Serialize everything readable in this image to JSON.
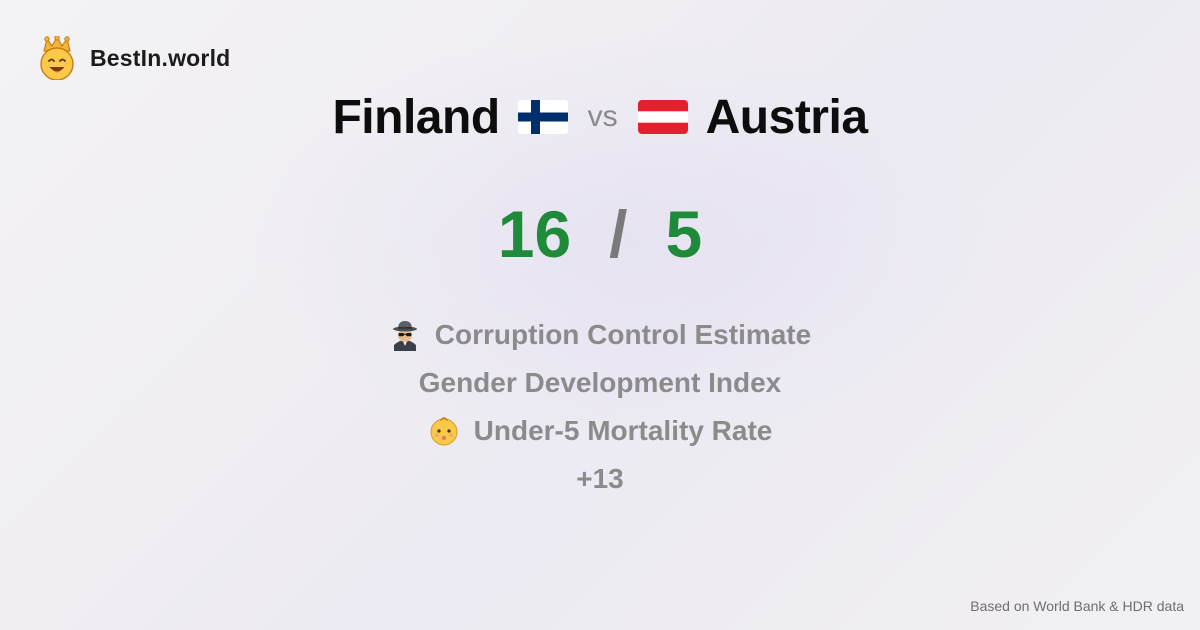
{
  "brand": {
    "name": "BestIn.world",
    "icon": "crowned-smiley-icon"
  },
  "comparison": {
    "left": {
      "name": "Finland",
      "flag": "finland-flag-icon"
    },
    "vs": "vs",
    "right": {
      "name": "Austria",
      "flag": "austria-flag-icon"
    }
  },
  "score": {
    "left": "16",
    "separator": "/",
    "right": "5"
  },
  "metrics": [
    {
      "icon": "spy-icon",
      "label": "Corruption Control Estimate"
    },
    {
      "icon": "",
      "label": "Gender Development Index"
    },
    {
      "icon": "baby-icon",
      "label": "Under-5 Mortality Rate"
    }
  ],
  "more_count": "+13",
  "footer": {
    "source": "Based on World Bank & HDR data"
  },
  "colors": {
    "score": "#1f8a3a",
    "finland_blue": "#002f6c",
    "austria_red": "#e4202e"
  }
}
